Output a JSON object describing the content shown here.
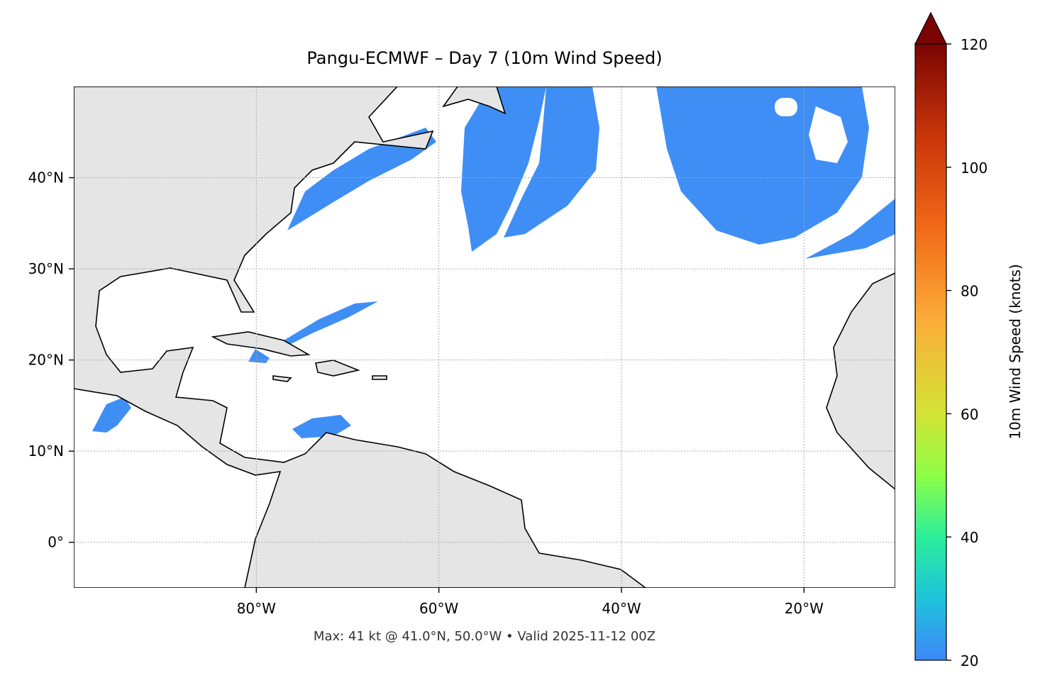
{
  "chart_data": {
    "type": "map",
    "title": "Pangu-ECMWF – Day 7 (10m Wind Speed)",
    "annotation": "Max: 41 kt @ 41.0°N, 50.0°W • Valid 2025-11-12 00Z",
    "xlim": [
      -100,
      -10
    ],
    "ylim": [
      -5,
      50
    ],
    "xticks": [
      {
        "value": -80,
        "label": "80°W"
      },
      {
        "value": -60,
        "label": "60°W"
      },
      {
        "value": -40,
        "label": "40°W"
      },
      {
        "value": -20,
        "label": "20°W"
      }
    ],
    "yticks": [
      {
        "value": 0,
        "label": "0°"
      },
      {
        "value": 10,
        "label": "10°N"
      },
      {
        "value": 20,
        "label": "20°N"
      },
      {
        "value": 30,
        "label": "30°N"
      },
      {
        "value": 40,
        "label": "40°N"
      }
    ],
    "grid": true,
    "colorbar": {
      "label": "10m Wind Speed (knots)",
      "lim": [
        20,
        120
      ],
      "ticks": [
        20,
        40,
        60,
        80,
        100,
        120
      ],
      "extend": "max"
    }
  }
}
